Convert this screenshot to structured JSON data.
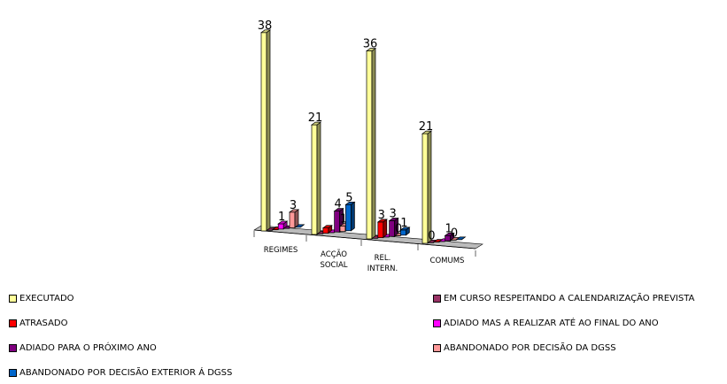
{
  "chart_data": {
    "type": "bar",
    "title": "",
    "xlabel": "",
    "ylabel": "",
    "ylim": [
      0,
      38
    ],
    "grid": false,
    "legend_position": "bottom",
    "categories": [
      "REGIMES",
      "ACÇÃO SOCIAL",
      "REL. INTERN.",
      "COMUMS"
    ],
    "series": [
      {
        "name": "EXECUTADO",
        "color": "#ffff99",
        "values": [
          38,
          21,
          36,
          21
        ],
        "value_labels": [
          "38",
          "21",
          "36",
          "21"
        ]
      },
      {
        "name": "EM CURSO RESPEITANDO A CALENDARIZAÇÃO PREVISTA",
        "color": "#993366",
        "values": [
          0,
          0,
          0,
          0
        ],
        "value_labels": [
          "",
          "",
          "",
          "0"
        ]
      },
      {
        "name": "ATRASADO",
        "color": "#ff0000",
        "values": [
          0,
          1,
          3,
          0
        ],
        "value_labels": [
          "",
          "",
          "3",
          ""
        ]
      },
      {
        "name": "ADIADO MAS A REALIZAR ATÉ AO FINAL DO ANO",
        "color": "#ff00ff",
        "values": [
          1,
          0,
          0,
          0
        ],
        "value_labels": [
          "1",
          "",
          "",
          ""
        ]
      },
      {
        "name": "ADIADO PARA O PRÓXIMO ANO",
        "color": "#800080",
        "values": [
          0,
          4,
          3,
          1
        ],
        "value_labels": [
          "",
          "4",
          "3",
          "1"
        ]
      },
      {
        "name": "ABANDONADO POR DECISÃO DA DGSS",
        "color": "#ff9999",
        "values": [
          3,
          1,
          0,
          0
        ],
        "value_labels": [
          "3",
          "1",
          "0",
          "0"
        ]
      },
      {
        "name": "ABANDONADO POR DECISÃO EXTERIOR Á DGSS",
        "color": "#0066cc",
        "values": [
          0,
          5,
          1,
          0
        ],
        "value_labels": [
          "",
          "5",
          "1",
          ""
        ]
      }
    ],
    "legend_order": [
      0,
      1,
      2,
      3,
      4,
      5,
      6
    ]
  }
}
